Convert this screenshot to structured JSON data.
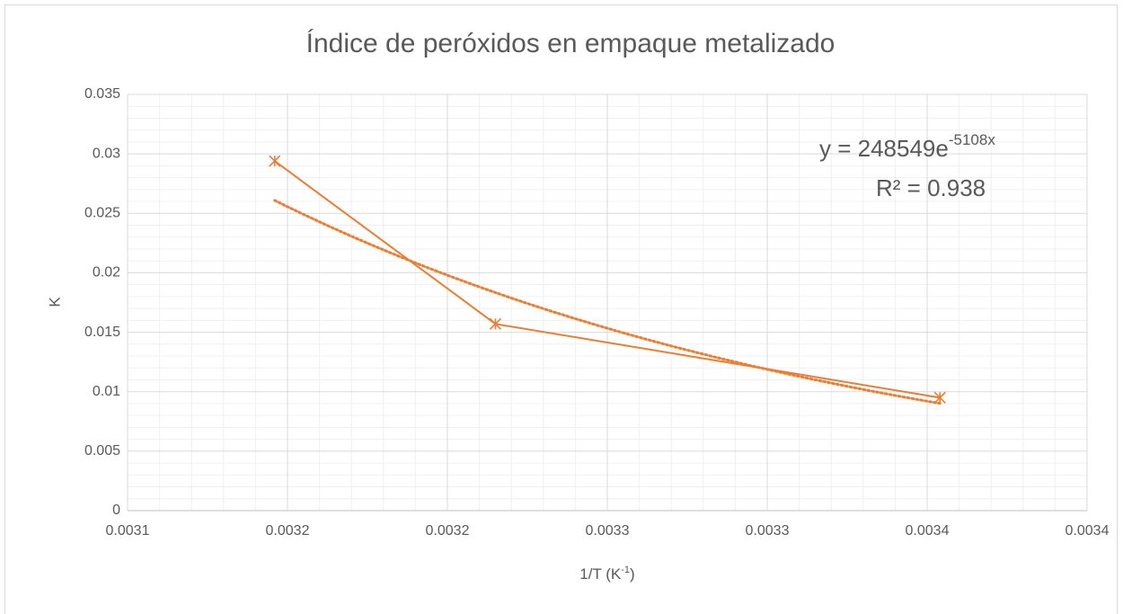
{
  "chart_data": {
    "type": "scatter",
    "title": "Índice de peróxidos en empaque metalizado",
    "ylabel": "K",
    "xlabel": {
      "text": "1/T (K",
      "sup": "-1",
      "suffix": ")"
    },
    "x": [
      0.003146,
      0.003215,
      0.003354
    ],
    "series": [
      {
        "color": "#ED7D31",
        "values": [
          0.0294,
          0.0157,
          0.0095
        ]
      }
    ],
    "trendline": {
      "a": 248549,
      "b": -5108,
      "equation": "y = 248549e",
      "exponent": "-5108x",
      "r_squared": "R² = 0.938"
    },
    "xlim": [
      0.0031,
      0.0034
    ],
    "xticks": [
      {
        "value": 0.0031,
        "label": "0.0031"
      },
      {
        "value": 0.00315,
        "label": "0.0032"
      },
      {
        "value": 0.0032,
        "label": "0.0032"
      },
      {
        "value": 0.00325,
        "label": "0.0033"
      },
      {
        "value": 0.0033,
        "label": "0.0033"
      },
      {
        "value": 0.00335,
        "label": "0.0034"
      },
      {
        "value": 0.0034,
        "label": "0.0034"
      }
    ],
    "ylim": [
      0,
      0.035
    ],
    "yticks": [
      0,
      0.005,
      0.01,
      0.015,
      0.02,
      0.025,
      0.03,
      0.035
    ],
    "grid": true,
    "minor_grid": true
  }
}
